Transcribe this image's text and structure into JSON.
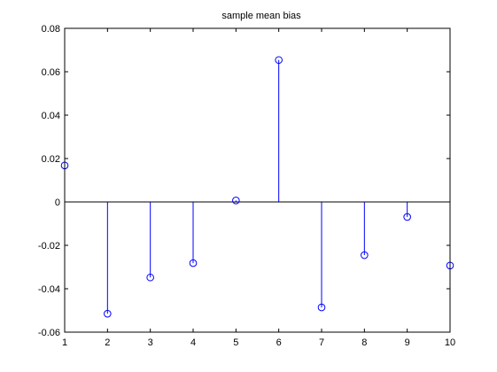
{
  "chart_data": {
    "type": "stem",
    "title": "sample mean bias",
    "xlabel": "",
    "ylabel": "",
    "xlim": [
      1,
      10
    ],
    "ylim": [
      -0.06,
      0.08
    ],
    "xticks": [
      1,
      2,
      3,
      4,
      5,
      6,
      7,
      8,
      9,
      10
    ],
    "xtick_labels": [
      "1",
      "2",
      "3",
      "4",
      "5",
      "6",
      "7",
      "8",
      "9",
      "10"
    ],
    "yticks": [
      0.08,
      0.06,
      0.04,
      0.02,
      0,
      -0.02,
      -0.04,
      -0.06
    ],
    "ytick_labels": [
      "0.08",
      "0.06",
      "0.04",
      "0.02",
      "0",
      "-0.02",
      "-0.04",
      "-0.06"
    ],
    "grid": false,
    "baseline": 0,
    "marker": "open-circle",
    "series": [
      {
        "x": [
          1,
          2,
          3,
          4,
          5,
          6,
          7,
          8,
          9,
          10
        ],
        "values": [
          0.0168,
          -0.0515,
          -0.0348,
          -0.0282,
          0.0007,
          0.0654,
          -0.0486,
          -0.0245,
          -0.0069,
          -0.0293
        ],
        "color": "#0000ff"
      }
    ]
  }
}
